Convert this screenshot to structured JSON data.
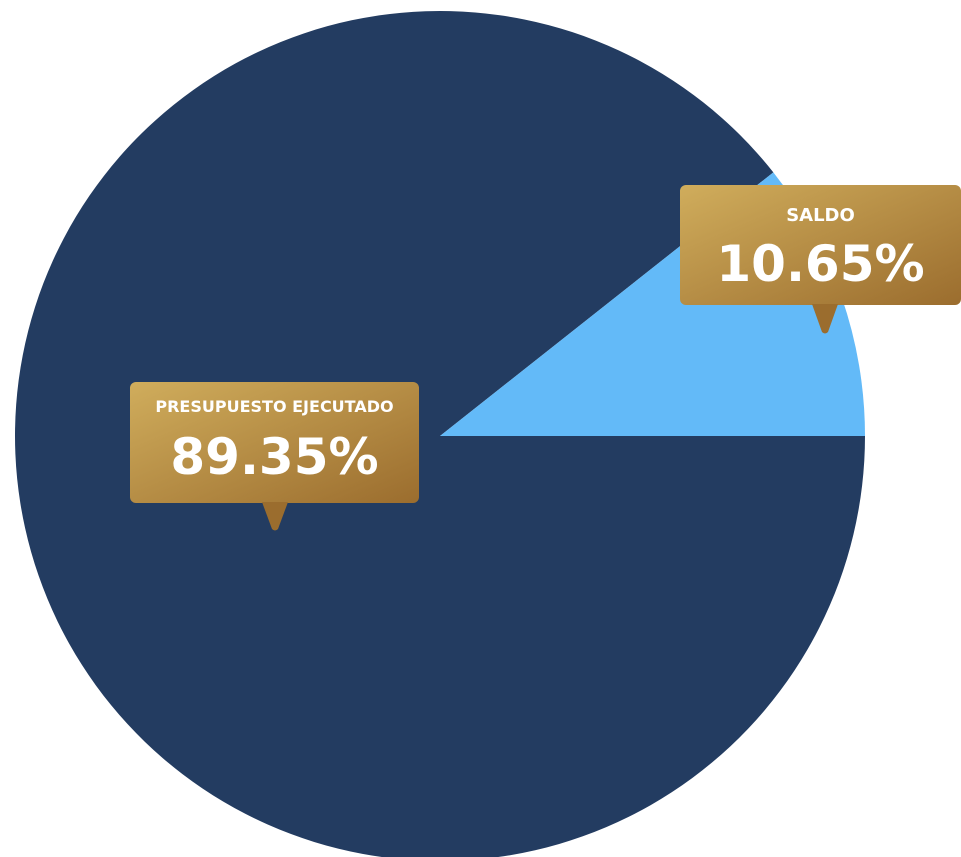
{
  "colors": {
    "executed": "#233c61",
    "remaining": "#63baf8",
    "callout_light": "#d0ad5c",
    "callout_dark": "#9b6d2e",
    "text": "#ffffff"
  },
  "chart_data": {
    "type": "pie",
    "title": "",
    "slices": [
      {
        "label": "PRESUPUESTO EJECUTADO",
        "value": 89.35,
        "display": "89.35%"
      },
      {
        "label": "SALDO",
        "value": 10.65,
        "display": "10.65%"
      }
    ],
    "legend": "none"
  }
}
